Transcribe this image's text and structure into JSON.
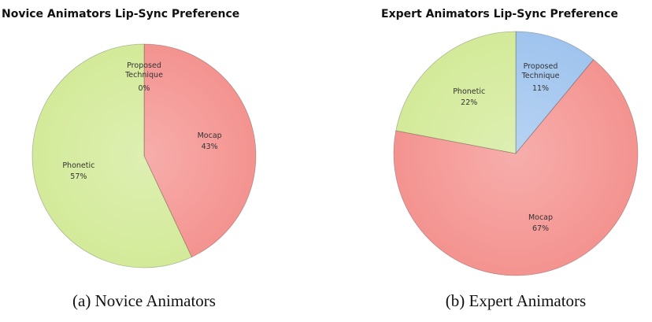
{
  "chart_data": [
    {
      "type": "pie",
      "title": "Novice Animators Lip-Sync Preference",
      "caption": "(a) Novice Animators",
      "categories": [
        "Proposed Technique",
        "Mocap",
        "Phonetic"
      ],
      "values": [
        0,
        43,
        57
      ],
      "value_labels": [
        "0%",
        "43%",
        "57%"
      ],
      "colors": [
        "#9fc4ee",
        "#f49390",
        "#d3ea99"
      ]
    },
    {
      "type": "pie",
      "title": "Expert Animators Lip-Sync Preference",
      "caption": "(b) Expert Animators",
      "categories": [
        "Proposed Technique",
        "Mocap",
        "Phonetic"
      ],
      "values": [
        11,
        67,
        22
      ],
      "value_labels": [
        "11%",
        "67%",
        "22%"
      ],
      "colors": [
        "#9fc4ee",
        "#f49390",
        "#d3ea99"
      ]
    }
  ]
}
